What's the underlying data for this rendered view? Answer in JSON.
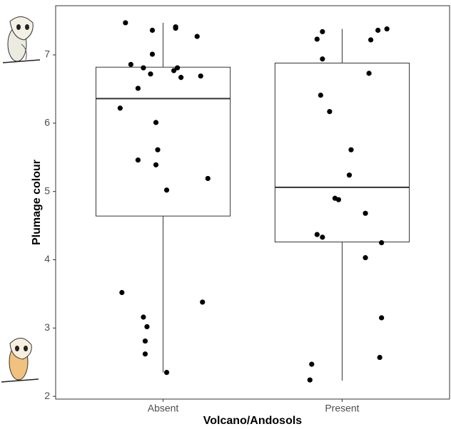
{
  "chart_data": {
    "type": "box",
    "x_label": "Volcano/Andosols",
    "y_label": "Plumage colour",
    "xlim": [
      0.4,
      2.6
    ],
    "xticks": [
      {
        "value": 1,
        "label": "Absent"
      },
      {
        "value": 2,
        "label": "Present"
      }
    ],
    "ylim": [
      1.96,
      7.72
    ],
    "yticks": [
      2,
      3,
      4,
      5,
      6,
      7
    ],
    "box_color": "#333333",
    "point_color": "#000000",
    "boxes": [
      {
        "whisker_low": 2.35,
        "q1": 4.64,
        "median": 6.36,
        "q3": 6.82,
        "whisker_high": 7.47
      },
      {
        "whisker_low": 2.23,
        "q1": 4.26,
        "median": 5.06,
        "q3": 6.88,
        "whisker_high": 7.38
      }
    ],
    "points": {
      "x": [
        0.79,
        0.94,
        1.07,
        1.07,
        1.19,
        0.94,
        0.82,
        0.89,
        1.08,
        1.06,
        0.93,
        1.1,
        1.21,
        0.86,
        0.76,
        0.96,
        0.97,
        0.86,
        0.96,
        1.25,
        1.02,
        0.77,
        1.22,
        0.89,
        0.91,
        0.9,
        0.9,
        1.02,
        2.25,
        2.2,
        1.89,
        1.86,
        2.16,
        1.89,
        2.15,
        1.88,
        1.93,
        2.05,
        2.04,
        1.96,
        1.98,
        2.13,
        1.86,
        1.89,
        2.22,
        2.13,
        2.22,
        2.21,
        1.83,
        1.82
      ],
      "y": [
        7.47,
        7.36,
        7.41,
        7.39,
        7.27,
        7.01,
        6.86,
        6.81,
        6.81,
        6.77,
        6.72,
        6.67,
        6.69,
        6.51,
        6.22,
        6.01,
        5.61,
        5.46,
        5.39,
        5.19,
        5.02,
        3.52,
        3.38,
        3.16,
        3.02,
        2.81,
        2.62,
        2.35,
        7.38,
        7.36,
        7.34,
        7.23,
        7.22,
        6.94,
        6.73,
        6.41,
        6.17,
        5.61,
        5.24,
        4.9,
        4.88,
        4.68,
        4.37,
        4.33,
        4.25,
        4.03,
        3.15,
        2.57,
        2.47,
        2.24
      ]
    }
  }
}
